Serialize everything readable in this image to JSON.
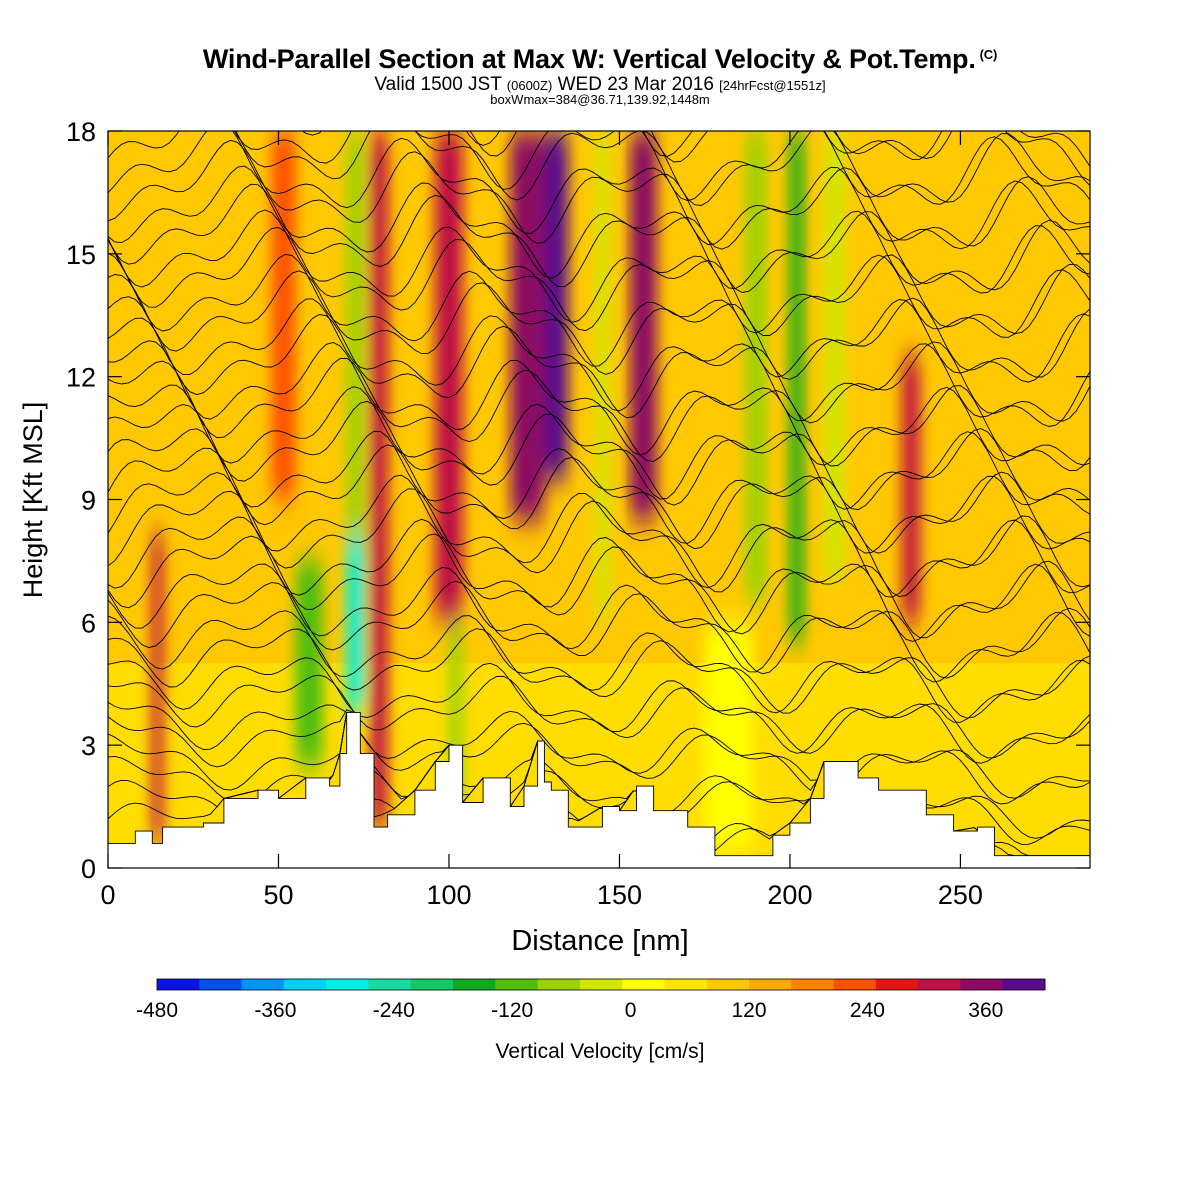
{
  "header": {
    "title": "Wind-Parallel Section at Max W: Vertical Velocity & Pot.Temp.",
    "copyright": "(C)",
    "valid_prefix": "Valid 1500 JST",
    "utc": "(0600Z)",
    "valid_date": "WED 23 Mar 2016",
    "forecast": "[24hrFcst@1551z]",
    "boxwmax": "boxWmax=384@36.71,139.92,1448m"
  },
  "chart_data": {
    "type": "heatmap",
    "title": "Wind-Parallel Section at Max W: Vertical Velocity & Pot.Temp.",
    "xlabel": "Distance [nm]",
    "ylabel": "Height [Kft MSL]",
    "xlim": [
      0,
      288
    ],
    "ylim": [
      0,
      18
    ],
    "x_ticks": [
      0,
      50,
      100,
      150,
      200,
      250
    ],
    "y_ticks": [
      0,
      3,
      6,
      9,
      12,
      15,
      18
    ],
    "colorbar": {
      "label": "Vertical Velocity [cm/s]",
      "min": -480,
      "max": 420,
      "step": 40,
      "tick_values": [
        -480,
        -360,
        -240,
        -120,
        0,
        120,
        240,
        360
      ],
      "tick_labels": [
        "-480",
        "-360",
        "-240",
        "-120",
        "0",
        "120",
        "240",
        "360"
      ],
      "colors": [
        "#0a14e6",
        "#0050f0",
        "#0096f5",
        "#00d2f5",
        "#00f0e6",
        "#14dca0",
        "#14c864",
        "#10aa1e",
        "#50be0a",
        "#9bd205",
        "#d2e600",
        "#ffff00",
        "#ffe600",
        "#ffc800",
        "#ffa800",
        "#ff8200",
        "#ff5000",
        "#e61414",
        "#be0f46",
        "#8c0a64",
        "#5a0a8c"
      ]
    },
    "vertical_velocity_bands": [
      {
        "x": 13,
        "w": 3,
        "y0": 0.6,
        "y1": 8.2,
        "value": 240
      },
      {
        "x": 48,
        "w": 7,
        "y0": 9,
        "y1": 18,
        "value": 160
      },
      {
        "x": 55,
        "w": 8,
        "y0": 2.5,
        "y1": 7.5,
        "value": -140
      },
      {
        "x": 70,
        "w": 5,
        "y0": 3.8,
        "y1": 9,
        "value": -320
      },
      {
        "x": 70,
        "w": 5,
        "y0": 8,
        "y1": 18,
        "value": -120
      },
      {
        "x": 77,
        "w": 5,
        "y0": 1,
        "y1": 18,
        "value": 260
      },
      {
        "x": 96,
        "w": 8,
        "y0": 6,
        "y1": 18,
        "value": 240
      },
      {
        "x": 100,
        "w": 4,
        "y0": 1.3,
        "y1": 6,
        "value": -100
      },
      {
        "x": 118,
        "w": 10,
        "y0": 8.5,
        "y1": 18,
        "value": 280
      },
      {
        "x": 128,
        "w": 7,
        "y0": 9.5,
        "y1": 18,
        "value": 380
      },
      {
        "x": 143,
        "w": 4,
        "y0": 6,
        "y1": 18,
        "value": -60
      },
      {
        "x": 153,
        "w": 8,
        "y0": 8.5,
        "y1": 18,
        "value": 280
      },
      {
        "x": 187,
        "w": 6,
        "y0": 6.5,
        "y1": 18,
        "value": -120
      },
      {
        "x": 200,
        "w": 4,
        "y0": 5.5,
        "y1": 18,
        "value": -200
      },
      {
        "x": 210,
        "w": 6,
        "y0": 7,
        "y1": 18,
        "value": -80
      },
      {
        "x": 233,
        "w": 5,
        "y0": 6,
        "y1": 12.5,
        "value": 240
      },
      {
        "x": 175,
        "w": 14,
        "y0": 0.5,
        "y1": 6,
        "value": -40
      }
    ],
    "terrain_profile": {
      "x": [
        0,
        8,
        13,
        16,
        28,
        34,
        44,
        50,
        58,
        65,
        68,
        70,
        72,
        74,
        78,
        82,
        90,
        96,
        100,
        104,
        110,
        118,
        122,
        126,
        128,
        130,
        135,
        145,
        150,
        155,
        160,
        170,
        178,
        190,
        195,
        200,
        206,
        210,
        216,
        220,
        226,
        240,
        248,
        255,
        260,
        288
      ],
      "height_kft": [
        0.6,
        0.9,
        0.6,
        1.0,
        1.1,
        1.7,
        1.9,
        1.7,
        2.2,
        2.0,
        2.8,
        3.8,
        3.8,
        2.8,
        1.0,
        1.3,
        1.9,
        2.6,
        3.0,
        1.6,
        2.2,
        1.5,
        2.0,
        3.1,
        2.1,
        1.9,
        1.0,
        1.5,
        1.4,
        2.0,
        1.4,
        1.0,
        0.3,
        0.3,
        0.8,
        1.1,
        1.7,
        2.6,
        2.6,
        2.2,
        1.9,
        1.3,
        0.9,
        1.0,
        0.3,
        0.3
      ]
    },
    "potential_temperature_contours": {
      "count": 36,
      "color": "#000000"
    }
  }
}
